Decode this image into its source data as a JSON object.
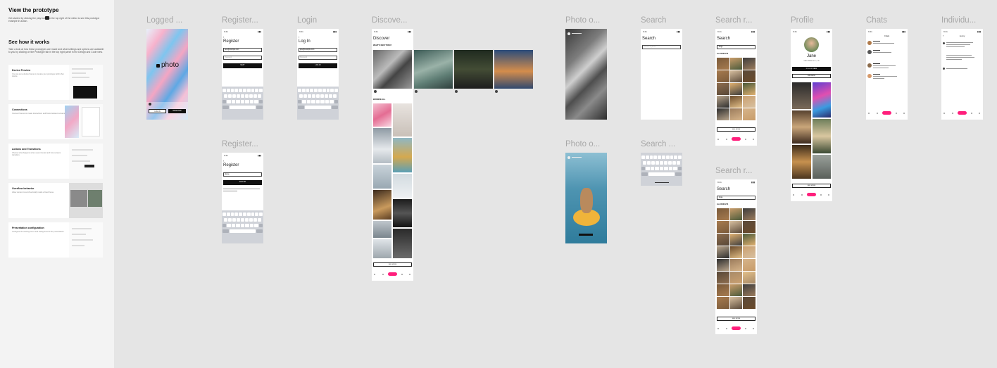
{
  "panel": {
    "title": "View the prototype",
    "intro": "Get started by clicking the play button in the top right of the editor to see this prototype example in action.",
    "section_title": "See how it works",
    "section_intro": "Take a look at how these prototypes are made and what settings and options are available to you by clicking on the Prototype tab in the top right panel in the Design and Code view.",
    "cards": [
      {
        "title": "Device Preview",
        "desc": "You can set a device frame to preview your prototype within that device."
      },
      {
        "title": "Connections",
        "desc": "Connect frames to create interactions and flows between screens."
      },
      {
        "title": "Actions and Transitions",
        "desc": "Choose what happens when users interact and how screens transition."
      },
      {
        "title": "Overflow behavior",
        "desc": "Allow content to scroll vertically inside a fixed frame."
      },
      {
        "title": "Presentation configuration",
        "desc": "Configure the starting frame and background of the presentation."
      }
    ]
  },
  "frames": {
    "logged_out": {
      "label": "Logged ...",
      "logo": "photo",
      "login_btn": "LOG IN",
      "register_btn": "REGISTER"
    },
    "register1": {
      "label": "Register...",
      "heading": "Register",
      "email": "jane@example.com",
      "password": "Password",
      "cta": "NEXT"
    },
    "register2": {
      "label": "Register...",
      "heading": "Register",
      "username": "@jane",
      "cta": "SIGN UP"
    },
    "login": {
      "label": "Login",
      "heading": "Log In",
      "email": "jane@example.com",
      "password": "Password",
      "cta": "LOG IN"
    },
    "discover": {
      "label": "Discove...",
      "heading": "Discover",
      "sub1": "WHAT'S NEW TODAY",
      "sub2": "BROWSE ALL",
      "see_more": "SEE MORE"
    },
    "photo1": {
      "label": "Photo o..."
    },
    "photo2": {
      "label": "Photo o..."
    },
    "search1": {
      "label": "Search",
      "heading": "Search",
      "placeholder": "Search all photos"
    },
    "search2": {
      "label": "Search ..."
    },
    "search_results1": {
      "label": "Search r...",
      "heading": "Search",
      "query": "Dogs",
      "sub": "ALL RESULTS",
      "see_more": "SEE MORE"
    },
    "search_results2": {
      "label": "Search r...",
      "heading": "Search",
      "query": "Dogs",
      "sub": "ALL RESULTS",
      "see_more": "SEE MORE"
    },
    "profile": {
      "label": "Profile",
      "name": "Jane",
      "location": "SAN FRANCISCO, CA",
      "follow": "FOLLOW JANE",
      "message": "MESSAGE",
      "see_more": "SEE MORE"
    },
    "chats": {
      "label": "Chats",
      "heading": "Chats"
    },
    "individual": {
      "label": "Individu...",
      "heading": "Jenny"
    }
  },
  "colors": {
    "accent": "#ff1f7c",
    "canvas": "#e5e5e5",
    "panel": "#f3f3f3"
  },
  "icons": [
    "play-icon",
    "camera-logo-icon",
    "back-arrow-icon",
    "home-icon",
    "search-icon",
    "plus-icon",
    "chat-icon",
    "profile-icon"
  ]
}
